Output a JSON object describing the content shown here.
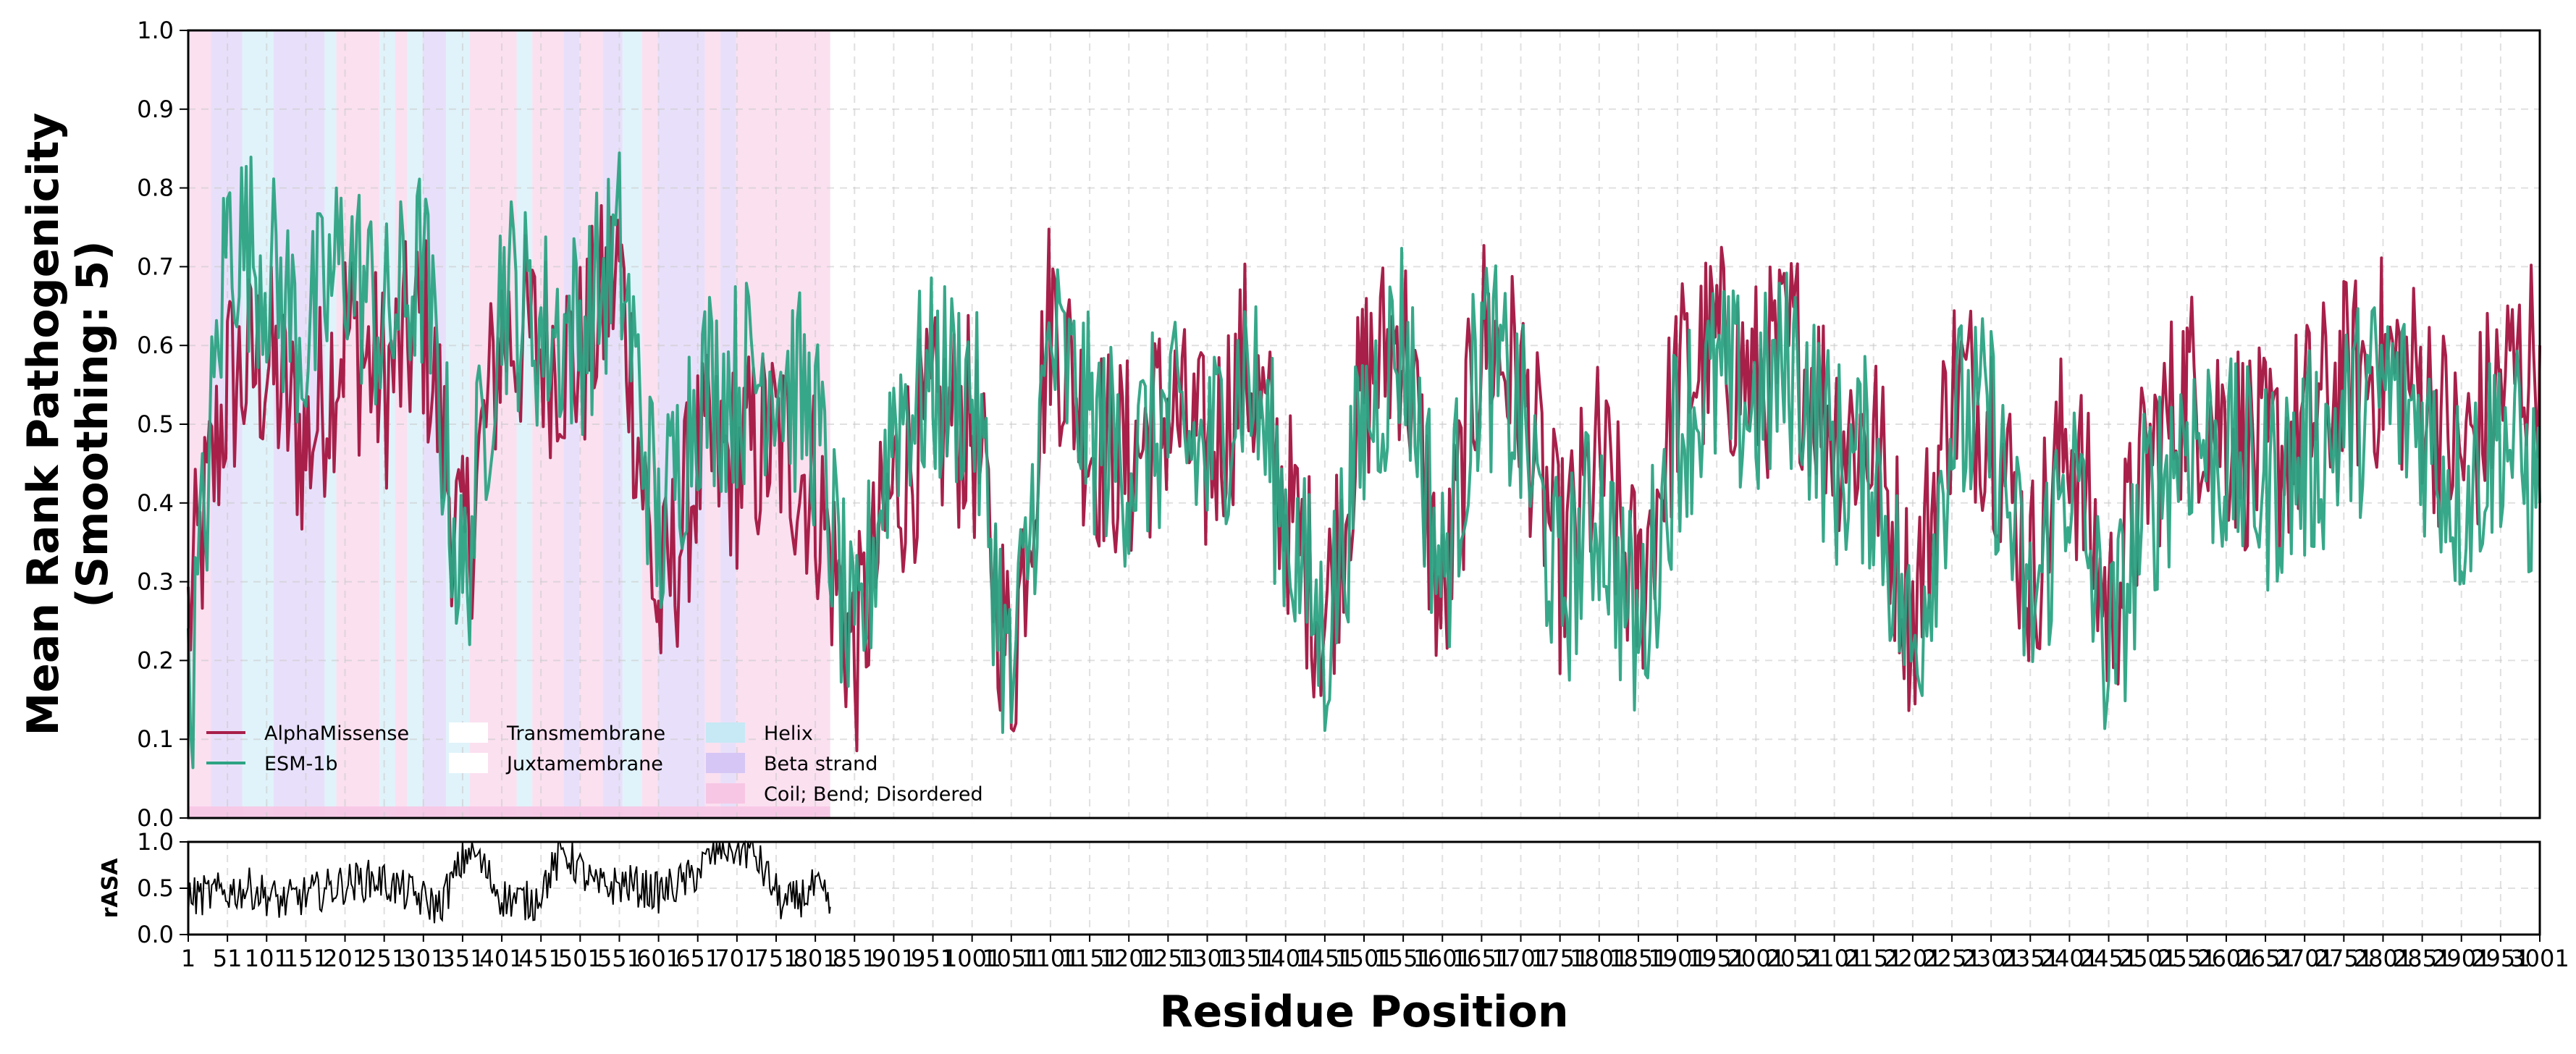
{
  "chart_data": [
    {
      "type": "line",
      "panel": "main",
      "title": "",
      "xlabel": "",
      "ylabel_line1": "Mean Rank Pathogenicity",
      "ylabel_line2": "(Smoothing: 5)",
      "ylim": [
        0,
        1.0
      ],
      "xlim": [
        1,
        3001
      ],
      "yticks": [
        "0.0",
        "0.1",
        "0.2",
        "0.3",
        "0.4",
        "0.5",
        "0.6",
        "0.7",
        "0.8",
        "0.9",
        "1.0"
      ],
      "grid": true,
      "legend_position": "lower-left",
      "series": [
        {
          "name": "AlphaMissense",
          "color": "#a8204a",
          "x": [
            1,
            51,
            101,
            151,
            201,
            251,
            301,
            351,
            401,
            451,
            501,
            551,
            601,
            651,
            701,
            751,
            801,
            851,
            901,
            951,
            1001,
            1051,
            1101,
            1151,
            1201,
            1251,
            1301,
            1351,
            1401,
            1451,
            1501,
            1551,
            1601,
            1651,
            1701,
            1751,
            1801,
            1851,
            1901,
            1951,
            2001,
            2051,
            2101,
            2151,
            2201,
            2251,
            2301,
            2351,
            2401,
            2451,
            2501,
            2551,
            2601,
            2651,
            2701,
            2751,
            2801,
            2851,
            2901,
            2951,
            3001
          ],
          "values": [
            0.25,
            0.55,
            0.58,
            0.47,
            0.62,
            0.55,
            0.63,
            0.32,
            0.62,
            0.6,
            0.58,
            0.7,
            0.25,
            0.45,
            0.45,
            0.48,
            0.42,
            0.2,
            0.42,
            0.5,
            0.5,
            0.18,
            0.65,
            0.48,
            0.45,
            0.52,
            0.45,
            0.58,
            0.4,
            0.25,
            0.55,
            0.62,
            0.25,
            0.62,
            0.55,
            0.32,
            0.45,
            0.28,
            0.55,
            0.6,
            0.55,
            0.6,
            0.5,
            0.48,
            0.25,
            0.55,
            0.52,
            0.3,
            0.5,
            0.25,
            0.45,
            0.55,
            0.5,
            0.45,
            0.5,
            0.55,
            0.58,
            0.55,
            0.45,
            0.55,
            0.6
          ]
        },
        {
          "name": "ESM-1b",
          "color": "#2ca383",
          "x": [
            1,
            51,
            101,
            151,
            201,
            251,
            301,
            351,
            401,
            451,
            501,
            551,
            601,
            651,
            701,
            751,
            801,
            851,
            901,
            951,
            1001,
            1051,
            1101,
            1151,
            1201,
            1251,
            1301,
            1351,
            1401,
            1451,
            1501,
            1551,
            1601,
            1651,
            1701,
            1751,
            1801,
            1851,
            1901,
            1951,
            2001,
            2051,
            2101,
            2151,
            2201,
            2251,
            2301,
            2351,
            2401,
            2451,
            2501,
            2551,
            2601,
            2651,
            2701,
            2751,
            2801,
            2851,
            2901,
            2951,
            3001
          ],
          "values": [
            0.12,
            0.75,
            0.7,
            0.6,
            0.72,
            0.62,
            0.7,
            0.28,
            0.68,
            0.62,
            0.62,
            0.72,
            0.35,
            0.55,
            0.55,
            0.58,
            0.5,
            0.18,
            0.52,
            0.55,
            0.55,
            0.15,
            0.6,
            0.5,
            0.45,
            0.5,
            0.45,
            0.58,
            0.38,
            0.22,
            0.5,
            0.62,
            0.3,
            0.6,
            0.5,
            0.28,
            0.4,
            0.22,
            0.5,
            0.55,
            0.52,
            0.58,
            0.45,
            0.45,
            0.2,
            0.5,
            0.5,
            0.25,
            0.45,
            0.2,
            0.4,
            0.5,
            0.45,
            0.42,
            0.45,
            0.5,
            0.55,
            0.5,
            0.4,
            0.5,
            0.4
          ]
        }
      ],
      "legend": {
        "line_entries": [
          {
            "label": "AlphaMissense",
            "color": "#a8204a"
          },
          {
            "label": "ESM-1b",
            "color": "#2ca383"
          }
        ],
        "region_entries": [
          {
            "label": "Transmembrane",
            "color": "#ffffff"
          },
          {
            "label": "Juxtamembrane",
            "color": "#ffffff"
          }
        ],
        "structure_entries": [
          {
            "label": "Helix",
            "color": "#c6e9f5"
          },
          {
            "label": "Beta strand",
            "color": "#d6c6f5"
          },
          {
            "label": "Coil; Bend; Disordered",
            "color": "#f7c6e4"
          }
        ]
      },
      "structure_annotations": {
        "covered_range": [
          1,
          820
        ],
        "segments": [
          {
            "start": 1,
            "end": 30,
            "type": "Coil; Bend; Disordered"
          },
          {
            "start": 30,
            "end": 70,
            "type": "Beta strand"
          },
          {
            "start": 70,
            "end": 110,
            "type": "Helix"
          },
          {
            "start": 110,
            "end": 175,
            "type": "Beta strand"
          },
          {
            "start": 175,
            "end": 190,
            "type": "Helix"
          },
          {
            "start": 190,
            "end": 245,
            "type": "Coil; Bend; Disordered"
          },
          {
            "start": 245,
            "end": 265,
            "type": "Helix"
          },
          {
            "start": 265,
            "end": 280,
            "type": "Coil; Bend; Disordered"
          },
          {
            "start": 280,
            "end": 300,
            "type": "Helix"
          },
          {
            "start": 300,
            "end": 330,
            "type": "Beta strand"
          },
          {
            "start": 330,
            "end": 360,
            "type": "Helix"
          },
          {
            "start": 360,
            "end": 390,
            "type": "Coil; Bend; Disordered"
          },
          {
            "start": 390,
            "end": 420,
            "type": "Coil; Bend; Disordered"
          },
          {
            "start": 420,
            "end": 440,
            "type": "Helix"
          },
          {
            "start": 440,
            "end": 480,
            "type": "Coil; Bend; Disordered"
          },
          {
            "start": 480,
            "end": 500,
            "type": "Beta strand"
          },
          {
            "start": 500,
            "end": 530,
            "type": "Coil; Bend; Disordered"
          },
          {
            "start": 530,
            "end": 555,
            "type": "Beta strand"
          },
          {
            "start": 555,
            "end": 580,
            "type": "Helix"
          },
          {
            "start": 580,
            "end": 600,
            "type": "Coil; Bend; Disordered"
          },
          {
            "start": 600,
            "end": 660,
            "type": "Beta strand"
          },
          {
            "start": 660,
            "end": 680,
            "type": "Coil; Bend; Disordered"
          },
          {
            "start": 680,
            "end": 700,
            "type": "Beta strand"
          },
          {
            "start": 700,
            "end": 820,
            "type": "Coil; Bend; Disordered"
          }
        ]
      }
    },
    {
      "type": "line",
      "panel": "rasa",
      "title": "",
      "ylabel": "rASA",
      "xlabel": "Residue Position",
      "ylim": [
        0,
        1.0
      ],
      "xlim": [
        1,
        3001
      ],
      "yticks": [
        "0.0",
        "0.5",
        "1.0"
      ],
      "grid": true,
      "series": [
        {
          "name": "rASA",
          "color": "#000000",
          "x": [
            1,
            41,
            81,
            121,
            161,
            201,
            241,
            281,
            321,
            361,
            401,
            441,
            481,
            521,
            561,
            601,
            641,
            681,
            721,
            761,
            801,
            820
          ],
          "values": [
            0.4,
            0.45,
            0.5,
            0.35,
            0.45,
            0.55,
            0.6,
            0.45,
            0.3,
            0.95,
            0.4,
            0.35,
            0.9,
            0.5,
            0.55,
            0.45,
            0.6,
            0.95,
            0.9,
            0.3,
            0.5,
            0.3
          ]
        }
      ],
      "xtick_labels": [
        "1",
        "51",
        "101",
        "151",
        "201",
        "251",
        "301",
        "351",
        "401",
        "451",
        "501",
        "551",
        "601",
        "651",
        "701",
        "751",
        "801",
        "851",
        "901",
        "951",
        "1001",
        "1051",
        "1101",
        "1151",
        "1201",
        "1251",
        "1301",
        "1351",
        "1401",
        "1451",
        "1501",
        "1551",
        "1601",
        "1651",
        "1701",
        "1751",
        "1801",
        "1851",
        "1901",
        "1951",
        "2001",
        "2051",
        "2101",
        "2151",
        "2201",
        "2251",
        "2301",
        "2351",
        "2401",
        "2451",
        "2501",
        "2551",
        "2601",
        "2651",
        "2701",
        "2751",
        "2801",
        "2851",
        "2901",
        "2951",
        "3001"
      ]
    }
  ]
}
